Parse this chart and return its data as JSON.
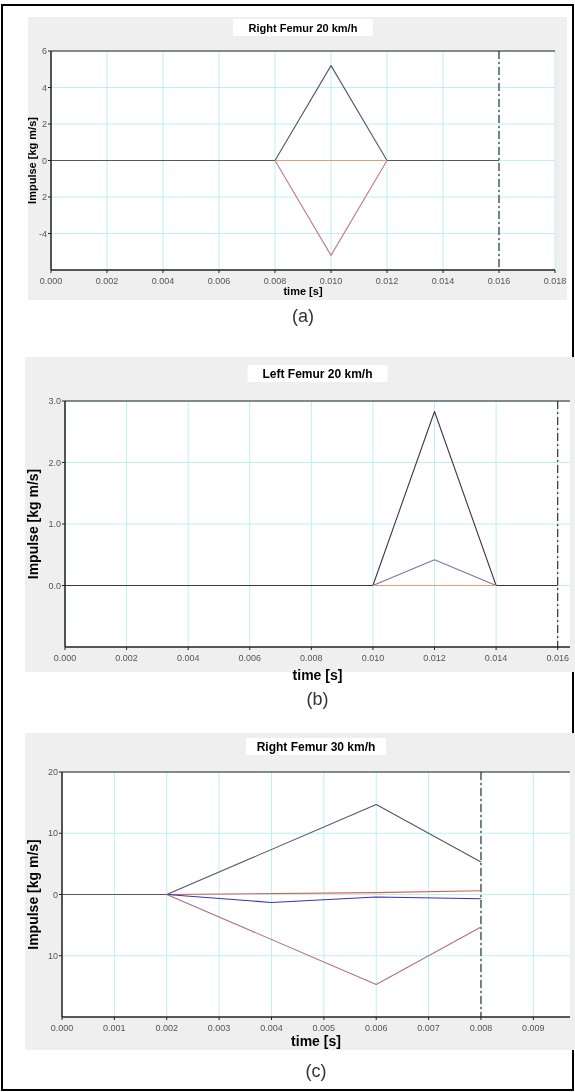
{
  "chart_data": [
    {
      "type": "line",
      "title": "Right Femur 20 km/h",
      "xlabel": "time [s]",
      "ylabel": "Impulse [kg m/s]",
      "annotations": [
        "(a)"
      ],
      "xlim": [
        0,
        0.018
      ],
      "xticks": [
        {
          "value": 0,
          "label": "0.000"
        },
        {
          "value": 0.002,
          "label": "0.002"
        },
        {
          "value": 0.004,
          "label": "0.004"
        },
        {
          "value": 0.006,
          "label": "0.006"
        },
        {
          "value": 0.008,
          "label": "0.008"
        },
        {
          "value": 0.01,
          "label": "0.010"
        },
        {
          "value": 0.012,
          "label": "0.012"
        },
        {
          "value": 0.014,
          "label": "0.014"
        },
        {
          "value": 0.016,
          "label": "0.016"
        },
        {
          "value": 0.018,
          "label": "0.018"
        }
      ],
      "ylim": [
        -6,
        6
      ],
      "yticks": [
        {
          "value": -4,
          "label": "-4"
        },
        {
          "value": -2,
          "label": "2"
        },
        0,
        2,
        4,
        6
      ],
      "grid": true,
      "ref_lines": [
        {
          "axis": "x",
          "value": 0.016
        }
      ],
      "series": [
        {
          "color": "#555566",
          "x": [
            0,
            0.008,
            0.01,
            0.012,
            0.016
          ],
          "values": [
            0,
            0,
            5.2,
            0,
            0
          ]
        },
        {
          "color": "#c07a8a",
          "x": [
            0.008,
            0.01,
            0.012
          ],
          "values": [
            0,
            -5.2,
            0
          ]
        },
        {
          "color": "#e0a070",
          "x": [
            0.008,
            0.012
          ],
          "values": [
            0,
            0
          ]
        }
      ]
    },
    {
      "type": "line",
      "title": "Left Femur 20 km/h",
      "xlabel": "time [s]",
      "ylabel": "Impulse [kg m/s]",
      "annotations": [
        "(b)"
      ],
      "xlim": [
        0,
        0.0164
      ],
      "xticks": [
        {
          "value": 0,
          "label": "0.000"
        },
        {
          "value": 0.002,
          "label": "0.002"
        },
        {
          "value": 0.004,
          "label": "0.004"
        },
        {
          "value": 0.006,
          "label": "0.006"
        },
        {
          "value": 0.008,
          "label": "0.008"
        },
        {
          "value": 0.01,
          "label": "0.010"
        },
        {
          "value": 0.012,
          "label": "0.012"
        },
        {
          "value": 0.014,
          "label": "0.014"
        },
        {
          "value": 0.016,
          "label": "0.016"
        }
      ],
      "ylim": [
        -1,
        3
      ],
      "yticks": [
        {
          "value": 0,
          "label": "0.0"
        },
        {
          "value": 1,
          "label": "1.0"
        },
        {
          "value": 2,
          "label": "2.0"
        },
        {
          "value": 3,
          "label": "3.0"
        }
      ],
      "grid": true,
      "ref_lines": [
        {
          "axis": "x",
          "value": 0.016
        }
      ],
      "series": [
        {
          "color": "#443344",
          "x": [
            0,
            0.01,
            0.012,
            0.014,
            0.016
          ],
          "values": [
            0,
            0,
            2.83,
            0,
            0
          ]
        },
        {
          "color": "#7777aa",
          "x": [
            0.01,
            0.012,
            0.014
          ],
          "values": [
            0,
            0.42,
            0
          ]
        },
        {
          "color": "#e0a070",
          "x": [
            0.01,
            0.012,
            0.014
          ],
          "values": [
            0,
            0,
            0
          ]
        }
      ]
    },
    {
      "type": "line",
      "title": "Right Femur 30 km/h",
      "xlabel": "time [s]",
      "ylabel": "Impulse [kg m/s]",
      "annotations": [
        "(c)"
      ],
      "xlim": [
        0,
        0.0097
      ],
      "xticks": [
        {
          "value": 0,
          "label": "0.000"
        },
        {
          "value": 0.001,
          "label": "0.001"
        },
        {
          "value": 0.002,
          "label": "0.002"
        },
        {
          "value": 0.003,
          "label": "0.003"
        },
        {
          "value": 0.004,
          "label": "0.004"
        },
        {
          "value": 0.005,
          "label": "0.005"
        },
        {
          "value": 0.006,
          "label": "0.006"
        },
        {
          "value": 0.007,
          "label": "0.007"
        },
        {
          "value": 0.008,
          "label": "0.008"
        },
        {
          "value": 0.009,
          "label": "0.009"
        }
      ],
      "ylim": [
        -20,
        20
      ],
      "yticks": [
        {
          "value": -10,
          "label": "10"
        },
        0,
        10,
        20
      ],
      "grid": true,
      "ref_lines": [
        {
          "axis": "x",
          "value": 0.008
        }
      ],
      "series": [
        {
          "color": "#555566",
          "x": [
            0,
            0.002,
            0.006,
            0.008
          ],
          "values": [
            0,
            0,
            14.7,
            5.3
          ]
        },
        {
          "color": "#d06050",
          "x": [
            0.002,
            0.006,
            0.008
          ],
          "values": [
            0,
            0.3,
            0.6
          ]
        },
        {
          "color": "#3333bb",
          "x": [
            0.002,
            0.004,
            0.006,
            0.008
          ],
          "values": [
            0,
            -1.3,
            -0.4,
            -0.7
          ]
        },
        {
          "color": "#b07080",
          "x": [
            0.002,
            0.006,
            0.008
          ],
          "values": [
            0,
            -14.7,
            -5.3
          ]
        }
      ]
    }
  ]
}
